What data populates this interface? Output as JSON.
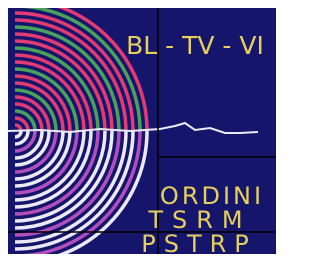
{
  "logo": {
    "title": "BL - TV - VI",
    "lines": [
      "ORDINI",
      "TSRM",
      "PSTRP"
    ]
  }
}
